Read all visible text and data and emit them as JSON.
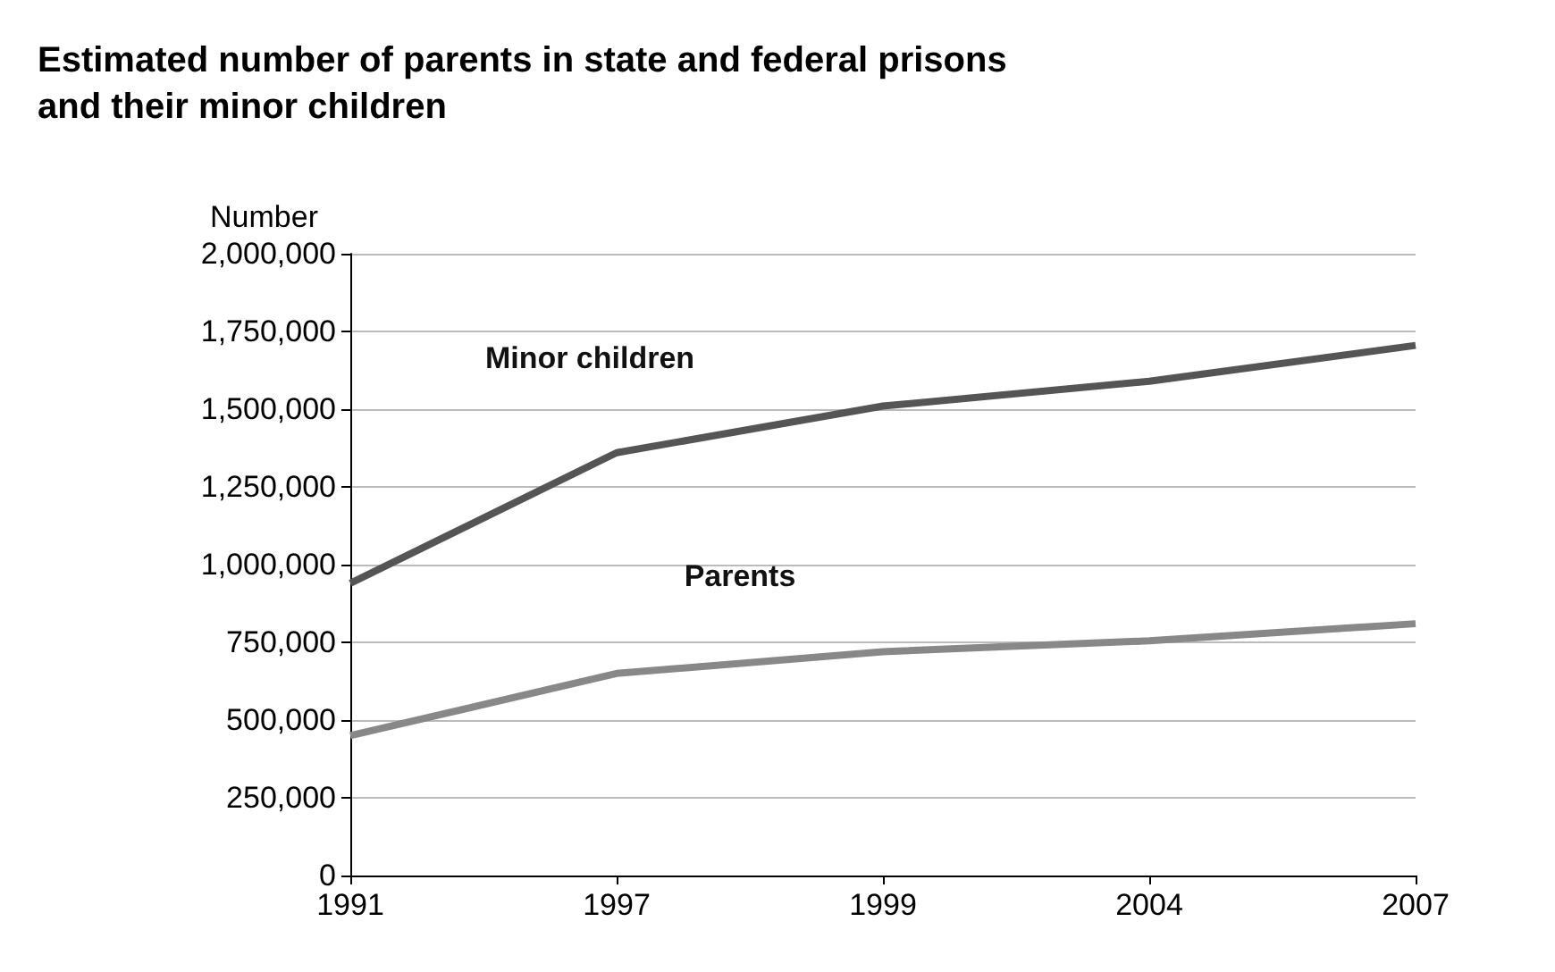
{
  "chart_data": {
    "type": "line",
    "title": "Estimated number of parents in state and federal prisons\nand their minor children",
    "ylabel": "Number",
    "categories": [
      "1991",
      "1997",
      "1999",
      "2004",
      "2007"
    ],
    "series": [
      {
        "name": "Minor children",
        "color": "#555555",
        "values": [
          940000,
          1360000,
          1510000,
          1590000,
          1705000
        ]
      },
      {
        "name": "Parents",
        "color": "#888888",
        "values": [
          450000,
          650000,
          720000,
          755000,
          810000
        ]
      }
    ],
    "ylim": [
      0,
      2000000
    ],
    "yticks": [
      0,
      {
        "value": 250000,
        "label": "250,000"
      },
      {
        "value": 500000,
        "label": "500,000"
      },
      {
        "value": 750000,
        "label": "750,000"
      },
      {
        "value": 1000000,
        "label": "1,000,000"
      },
      {
        "value": 1250000,
        "label": "1,250,000"
      },
      {
        "value": 1500000,
        "label": "1,500,000"
      },
      {
        "value": 1750000,
        "label": "1,750,000"
      },
      {
        "value": 2000000,
        "label": "2,000,000"
      }
    ],
    "grid": "y",
    "legend": false,
    "line_style": "solid"
  }
}
